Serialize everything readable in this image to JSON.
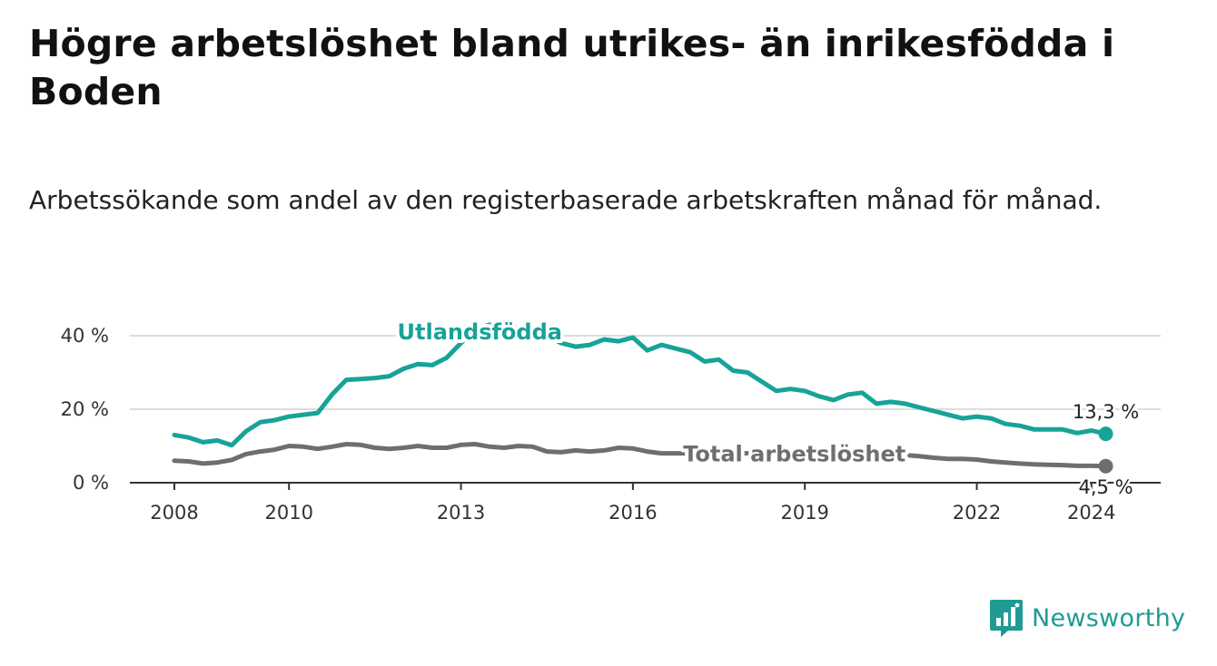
{
  "title": "Högre arbetslöshet bland utrikes- än inrikesfödda i Boden",
  "subtitle": "Arbetssökande som andel av den registerbaserade arbetskraften månad för månad.",
  "brand": {
    "name": "Newsworthy",
    "icon": "newsworthy-logo-icon",
    "color": "#1f9b94"
  },
  "colors": {
    "utlandsfodda": "#17a398",
    "total": "#6e6e72",
    "grid": "#dddddd",
    "axis": "#333333"
  },
  "chart_data": {
    "type": "line",
    "title": "Högre arbetslöshet bland utrikes- än inrikesfödda i Boden",
    "xlabel": "",
    "ylabel": "",
    "xlim": [
      2008.0,
      2024.4
    ],
    "ylim": [
      0,
      40
    ],
    "yticks": [
      0,
      20,
      40
    ],
    "ytick_labels": [
      "0 %",
      "20 %",
      "40 %"
    ],
    "xticks": [
      2008,
      2010,
      2013,
      2016,
      2019,
      2022,
      2024
    ],
    "xtick_labels": [
      "2008",
      "2010",
      "2013",
      "2016",
      "2019",
      "2022",
      "2024"
    ],
    "grid": true,
    "series": [
      {
        "name": "Utlandsfödda",
        "end_label": "13,3 %",
        "x": [
          2008.0,
          2008.25,
          2008.5,
          2008.75,
          2009.0,
          2009.25,
          2009.5,
          2009.75,
          2010.0,
          2010.25,
          2010.5,
          2010.75,
          2011.0,
          2011.25,
          2011.5,
          2011.75,
          2012.0,
          2012.25,
          2012.5,
          2012.75,
          2013.0,
          2013.25,
          2013.5,
          2013.75,
          2014.0,
          2014.25,
          2014.5,
          2014.75,
          2015.0,
          2015.25,
          2015.5,
          2015.75,
          2016.0,
          2016.25,
          2016.5,
          2016.75,
          2017.0,
          2017.25,
          2017.5,
          2017.75,
          2018.0,
          2018.25,
          2018.5,
          2018.75,
          2019.0,
          2019.25,
          2019.5,
          2019.75,
          2020.0,
          2020.25,
          2020.5,
          2020.75,
          2021.0,
          2021.25,
          2021.5,
          2021.75,
          2022.0,
          2022.25,
          2022.5,
          2022.75,
          2023.0,
          2023.25,
          2023.5,
          2023.75,
          2024.0,
          2024.25
        ],
        "values": [
          13,
          12.3,
          11,
          11.5,
          10.2,
          14,
          16.5,
          17,
          18,
          18.5,
          19,
          24,
          28,
          28.2,
          28.5,
          29,
          31,
          32.3,
          32,
          34,
          38,
          42,
          43,
          42.5,
          42,
          41,
          40,
          38,
          37,
          37.5,
          39,
          38.5,
          39.5,
          36,
          37.5,
          36.5,
          35.5,
          33,
          33.5,
          30.5,
          30,
          27.5,
          25,
          25.5,
          25,
          23.5,
          22.5,
          24,
          24.5,
          21.5,
          22,
          21.5,
          20.5,
          19.5,
          18.5,
          17.5,
          18,
          17.5,
          16,
          15.5,
          14.5,
          14.5,
          14.5,
          13.5,
          14.2,
          13.3
        ]
      },
      {
        "name": "Total arbetslöshet",
        "end_label": "4,5 %",
        "x": [
          2008.0,
          2008.25,
          2008.5,
          2008.75,
          2009.0,
          2009.25,
          2009.5,
          2009.75,
          2010.0,
          2010.25,
          2010.5,
          2010.75,
          2011.0,
          2011.25,
          2011.5,
          2011.75,
          2012.0,
          2012.25,
          2012.5,
          2012.75,
          2013.0,
          2013.25,
          2013.5,
          2013.75,
          2014.0,
          2014.25,
          2014.5,
          2014.75,
          2015.0,
          2015.25,
          2015.5,
          2015.75,
          2016.0,
          2016.25,
          2016.5,
          2016.75,
          2017.0,
          2017.25,
          2017.5,
          2017.75,
          2018.0,
          2018.25,
          2018.5,
          2018.75,
          2019.0,
          2019.25,
          2019.5,
          2019.75,
          2020.0,
          2020.25,
          2020.5,
          2020.75,
          2021.0,
          2021.25,
          2021.5,
          2021.75,
          2022.0,
          2022.25,
          2022.5,
          2022.75,
          2023.0,
          2023.25,
          2023.5,
          2023.75,
          2024.0,
          2024.25
        ],
        "values": [
          6,
          5.8,
          5.2,
          5.5,
          6.2,
          7.8,
          8.5,
          9,
          10,
          9.8,
          9.2,
          9.8,
          10.5,
          10.3,
          9.5,
          9.2,
          9.5,
          10,
          9.5,
          9.5,
          10.3,
          10.5,
          9.8,
          9.5,
          10,
          9.8,
          8.5,
          8.3,
          8.8,
          8.5,
          8.8,
          9.5,
          9.3,
          8.5,
          8,
          8,
          8,
          8,
          8,
          8,
          8,
          8,
          8,
          8,
          8,
          8,
          8,
          8,
          8,
          8,
          7.8,
          7.5,
          7.2,
          6.8,
          6.5,
          6.5,
          6.3,
          5.8,
          5.5,
          5.2,
          5,
          4.9,
          4.8,
          4.6,
          4.6,
          4.5
        ]
      }
    ]
  }
}
